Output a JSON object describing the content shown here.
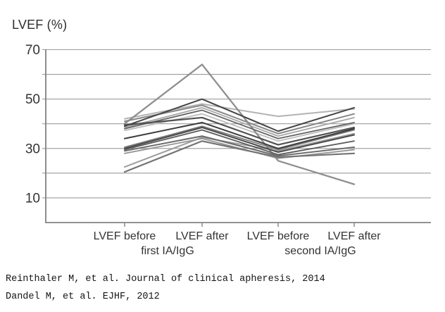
{
  "figure": {
    "y_axis_title": "LVEF (%)"
  },
  "colors": {
    "grid": "#9c9c9c",
    "axis": "#828282",
    "text": "#333333",
    "background": "#ffffff"
  },
  "citations": [
    "Reinthaler M, et al. Journal of clinical apheresis, 2014",
    "Dandel M, et al. EJHF, 2012"
  ],
  "chart_data": {
    "type": "line",
    "title": "LVEF (%)",
    "ylabel": "LVEF (%)",
    "xlabel": "",
    "ylim": [
      0,
      70
    ],
    "gridline_step": 10,
    "grid": true,
    "legend": false,
    "y_ticks_labeled": [
      70,
      50,
      30,
      10
    ],
    "categories": [
      "LVEF before first IA/IgG",
      "LVEF after first IA/IgG",
      "LVEF before second IA/IgG",
      "LVEF after second IA/IgG"
    ],
    "x_tick_labels": [
      "LVEF before",
      "LVEF after",
      "LVEF before",
      "LVEF after"
    ],
    "group_labels": [
      "first IA/IgG",
      "second IA/IgG"
    ],
    "series_note": "individual patient LVEF trajectories, grayscale, values in %",
    "series": [
      {
        "values": [
          37.3,
          44.0,
          33.0,
          40.0
        ],
        "color": "#bdbdbd",
        "width": 1.8
      },
      {
        "values": [
          42.0,
          48.0,
          43.0,
          46.0
        ],
        "color": "#b3b3b3",
        "width": 2.0
      },
      {
        "values": [
          38.5,
          46.5,
          35.0,
          42.5
        ],
        "color": "#a6a6a6",
        "width": 1.8
      },
      {
        "values": [
          22.5,
          34.5,
          29.0,
          36.0
        ],
        "color": "#9e9e9e",
        "width": 2.0
      },
      {
        "values": [
          28.0,
          34.0,
          26.0,
          29.5
        ],
        "color": "#969696",
        "width": 1.8
      },
      {
        "values": [
          40.0,
          64.0,
          25.0,
          15.5
        ],
        "color": "#8f8f8f",
        "width": 2.3
      },
      {
        "values": [
          41.0,
          47.5,
          36.0,
          44.0
        ],
        "color": "#878787",
        "width": 2.0
      },
      {
        "values": [
          30.5,
          39.0,
          29.5,
          37.5
        ],
        "color": "#7a7a7a",
        "width": 1.8
      },
      {
        "values": [
          20.5,
          33.0,
          26.5,
          28.0
        ],
        "color": "#737373",
        "width": 2.2
      },
      {
        "values": [
          29.0,
          35.0,
          27.0,
          30.5
        ],
        "color": "#6b6b6b",
        "width": 2.0
      },
      {
        "values": [
          38.0,
          45.5,
          34.0,
          40.5
        ],
        "color": "#636363",
        "width": 1.8
      },
      {
        "values": [
          29.5,
          37.5,
          27.5,
          33.0
        ],
        "color": "#5a5a5a",
        "width": 1.8
      },
      {
        "values": [
          39.5,
          42.5,
          31.5,
          38.5
        ],
        "color": "#525252",
        "width": 2.2
      },
      {
        "values": [
          30.0,
          38.5,
          28.5,
          35.5
        ],
        "color": "#4a4a4a",
        "width": 2.0
      },
      {
        "values": [
          39.0,
          50.0,
          37.0,
          46.5
        ],
        "color": "#454545",
        "width": 2.0
      },
      {
        "values": [
          34.0,
          40.5,
          30.0,
          38.0
        ],
        "color": "#3d3d3d",
        "width": 2.0
      }
    ]
  }
}
